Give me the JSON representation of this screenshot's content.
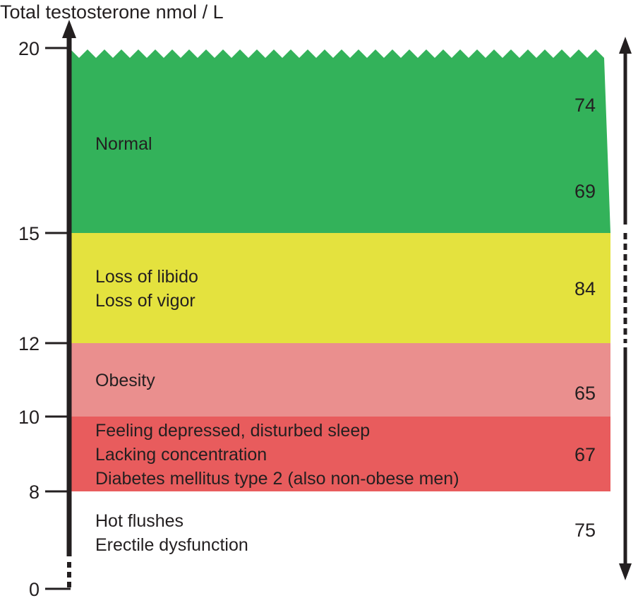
{
  "axis": {
    "title": "Total testosterone nmol / L",
    "ticks": [
      {
        "value": 20,
        "label": "20"
      },
      {
        "value": 15,
        "label": "15"
      },
      {
        "value": 12,
        "label": "12"
      },
      {
        "value": 10,
        "label": "10"
      },
      {
        "value": 8,
        "label": "8"
      },
      {
        "value": 0,
        "label": "0"
      }
    ]
  },
  "bands": [
    {
      "id": "normal",
      "from": 15,
      "to": 20,
      "color": "#33b25a",
      "lines": [
        "Normal"
      ],
      "numbers": [
        "74",
        "69"
      ]
    },
    {
      "id": "libido-vigor",
      "from": 12,
      "to": 15,
      "color": "#e4e23e",
      "lines": [
        "Loss of libido",
        "Loss of vigor"
      ],
      "numbers": [
        "84"
      ]
    },
    {
      "id": "obesity",
      "from": 10,
      "to": 12,
      "color": "#ea8f8e",
      "lines": [
        "Obesity"
      ],
      "numbers": [
        "65"
      ]
    },
    {
      "id": "depression",
      "from": 8,
      "to": 10,
      "color": "#e85c5d",
      "lines": [
        "Feeling depressed, disturbed sleep",
        "Lacking concentration",
        "Diabetes mellitus type 2 (also non-obese men)"
      ],
      "numbers": [
        "67"
      ]
    },
    {
      "id": "hot-flushes",
      "from": 0,
      "to": 8,
      "color": "#e8292c",
      "lines": [
        "Hot flushes",
        "Erectile dysfunction"
      ],
      "numbers": [
        "75"
      ]
    }
  ]
}
